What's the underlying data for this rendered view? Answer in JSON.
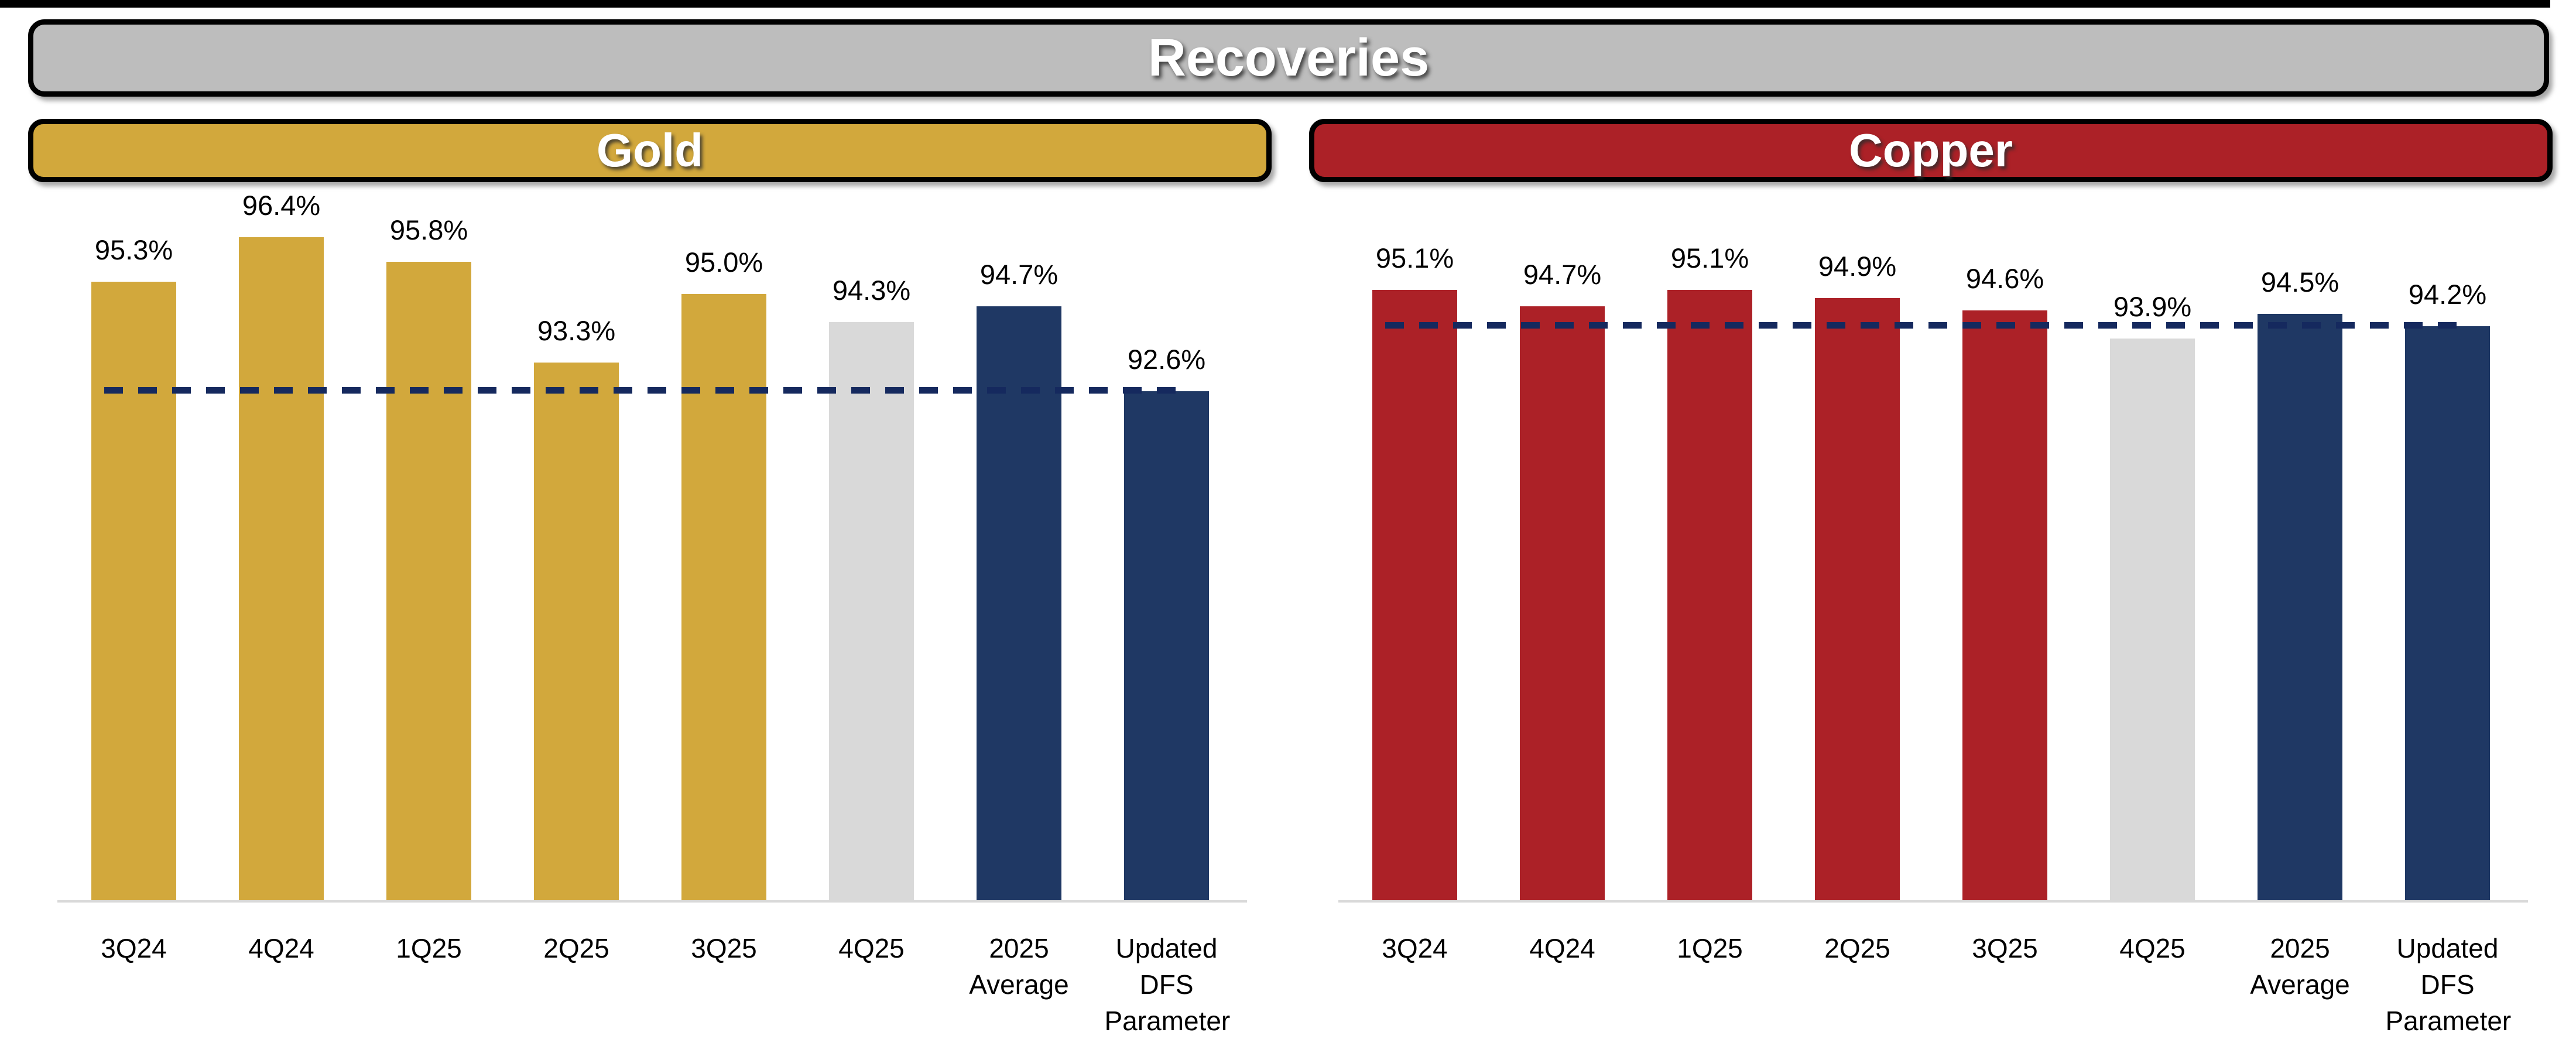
{
  "page": {
    "title": "Recoveries"
  },
  "colors": {
    "title_bg": "#BDBDBD",
    "gold": "#D2A83C",
    "red": "#AC2127",
    "navy": "#1F3864",
    "ref_line": "#15295E",
    "neutral_gray": "#D9D9D9",
    "axis_line": "#D9D9D9",
    "border_black": "#000000"
  },
  "sections": [
    {
      "label": "Gold"
    },
    {
      "label": "Copper"
    }
  ],
  "chart_data": [
    {
      "type": "bar",
      "title": "Gold",
      "categories": [
        "3Q24",
        "4Q24",
        "1Q25",
        "2Q25",
        "3Q25",
        "4Q25",
        "2025 Average",
        "Updated DFS Parameter"
      ],
      "values": [
        95.3,
        96.4,
        95.8,
        93.3,
        95.0,
        94.3,
        94.7,
        92.6
      ],
      "labels": [
        "95.3%",
        "96.4%",
        "95.8%",
        "93.3%",
        "95.0%",
        "94.3%",
        "94.7%",
        "92.6%"
      ],
      "bar_colors": [
        "gold",
        "gold",
        "gold",
        "gold",
        "gold",
        "neutral_gray",
        "navy",
        "navy"
      ],
      "reference_line": {
        "value": 92.6,
        "style": "dashed",
        "color": "ref_line"
      },
      "unit": "%",
      "ylim": [
        80,
        97.6
      ],
      "grid": false,
      "data_labels": true,
      "legend": "none"
    },
    {
      "type": "bar",
      "title": "Copper",
      "categories": [
        "3Q24",
        "4Q24",
        "1Q25",
        "2Q25",
        "3Q25",
        "4Q25",
        "2025 Average",
        "Updated DFS Parameter"
      ],
      "values": [
        95.1,
        94.7,
        95.1,
        94.9,
        94.6,
        93.9,
        94.5,
        94.2
      ],
      "labels": [
        "95.1%",
        "94.7%",
        "95.1%",
        "94.9%",
        "94.6%",
        "93.9%",
        "94.5%",
        "94.2%"
      ],
      "bar_colors": [
        "red",
        "red",
        "red",
        "red",
        "red",
        "neutral_gray",
        "navy",
        "navy"
      ],
      "reference_line": {
        "value": 94.2,
        "style": "dashed",
        "color": "ref_line"
      },
      "unit": "%",
      "ylim": [
        80,
        97.6
      ],
      "grid": false,
      "data_labels": true,
      "legend": "none"
    }
  ]
}
